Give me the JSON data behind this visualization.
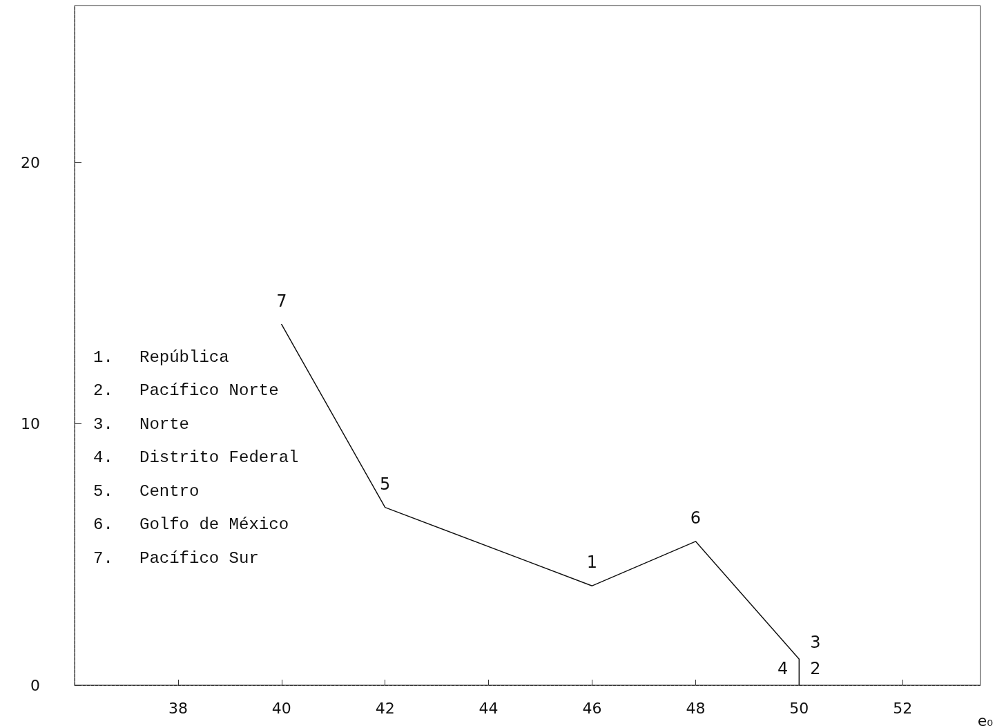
{
  "chart_data": {
    "type": "line",
    "xlabel": "e₀",
    "x": [
      40,
      42,
      46,
      48,
      50,
      50,
      50
    ],
    "series": [
      {
        "color": "#111111",
        "values": [
          13.8,
          6.8,
          3.8,
          5.5,
          1.0,
          0,
          0
        ]
      }
    ],
    "xlim": [
      36,
      53.5
    ],
    "xticks": [
      38,
      40,
      42,
      44,
      46,
      48,
      50,
      52
    ],
    "ylim": [
      0,
      26
    ],
    "yticks": [
      0,
      10,
      20
    ],
    "grid": false,
    "marker": "none",
    "line_style": "solid",
    "annotations": [
      "1.  República",
      "2.  Pacífico Norte",
      "3.  Norte",
      "4.  Distrito Federal",
      "5.  Centro",
      "6.  Golfo de México",
      "7.  Pacífico Sur",
      {
        "text": "7",
        "x": 40,
        "y": 13.8
      },
      {
        "text": "5",
        "x": 42,
        "y": 6.8
      },
      {
        "text": "1",
        "x": 46,
        "y": 3.8
      },
      {
        "text": "6",
        "x": 48,
        "y": 5.5
      },
      {
        "text": "3",
        "x": 50,
        "y": 1.0
      },
      {
        "text": "2",
        "x": 50,
        "y": 0
      },
      {
        "text": "4",
        "x": 50,
        "y": 0
      }
    ]
  }
}
